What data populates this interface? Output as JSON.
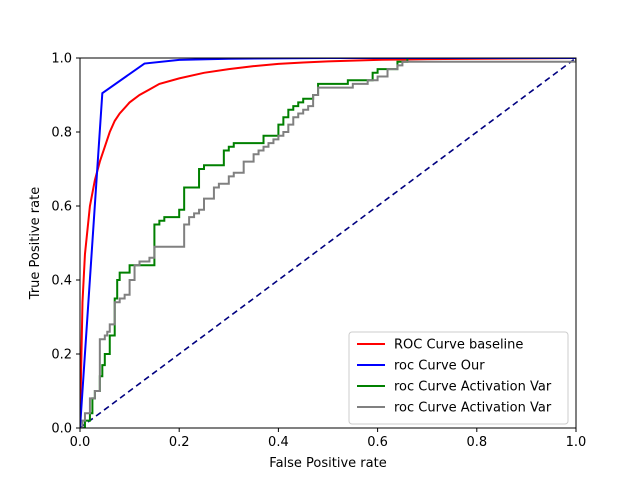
{
  "chart_data": {
    "type": "line",
    "title": "",
    "xlabel": "False Positive rate",
    "ylabel": "True Positive rate",
    "xlim": [
      0.0,
      1.0
    ],
    "ylim": [
      0.0,
      1.0
    ],
    "xticks": [
      "0.0",
      "0.2",
      "0.4",
      "0.6",
      "0.8",
      "1.0"
    ],
    "yticks": [
      "0.0",
      "0.2",
      "0.4",
      "0.6",
      "0.8",
      "1.0"
    ],
    "grid": false,
    "legend_position": "bottom-right",
    "series": [
      {
        "name": "ROC Curve baseline",
        "color": "#ff0000",
        "style": "solid",
        "x": [
          0.0,
          0.005,
          0.01,
          0.02,
          0.03,
          0.04,
          0.05,
          0.06,
          0.07,
          0.08,
          0.1,
          0.12,
          0.14,
          0.16,
          0.2,
          0.25,
          0.3,
          0.35,
          0.4,
          0.45,
          0.5,
          0.55,
          0.6,
          0.65,
          0.7,
          0.8,
          0.9,
          1.0
        ],
        "y": [
          0.0,
          0.34,
          0.47,
          0.6,
          0.67,
          0.72,
          0.76,
          0.8,
          0.83,
          0.85,
          0.88,
          0.9,
          0.915,
          0.93,
          0.945,
          0.96,
          0.97,
          0.978,
          0.984,
          0.988,
          0.991,
          0.993,
          0.995,
          0.996,
          0.997,
          0.998,
          0.999,
          1.0
        ]
      },
      {
        "name": "roc Curve Our",
        "color": "#0000ff",
        "style": "solid",
        "x": [
          0.0,
          0.045,
          0.13,
          0.2,
          0.3,
          0.5,
          1.0
        ],
        "y": [
          0.0,
          0.905,
          0.985,
          0.995,
          0.998,
          1.0,
          1.0
        ],
        "smooth": false
      },
      {
        "name": "roc Curve Activation Var",
        "color": "#008000",
        "style": "solid",
        "x": [
          0.0,
          0.01,
          0.02,
          0.025,
          0.03,
          0.04,
          0.045,
          0.05,
          0.06,
          0.07,
          0.075,
          0.08,
          0.09,
          0.1,
          0.11,
          0.12,
          0.15,
          0.16,
          0.17,
          0.18,
          0.2,
          0.21,
          0.22,
          0.24,
          0.25,
          0.29,
          0.3,
          0.31,
          0.37,
          0.4,
          0.41,
          0.42,
          0.43,
          0.44,
          0.45,
          0.47,
          0.48,
          0.51,
          0.54,
          0.59,
          0.6,
          0.64,
          0.65,
          0.66,
          1.0
        ],
        "y": [
          0.0,
          0.02,
          0.04,
          0.08,
          0.1,
          0.14,
          0.17,
          0.2,
          0.25,
          0.35,
          0.4,
          0.42,
          0.42,
          0.44,
          0.44,
          0.44,
          0.55,
          0.56,
          0.57,
          0.57,
          0.59,
          0.65,
          0.65,
          0.7,
          0.71,
          0.75,
          0.76,
          0.77,
          0.79,
          0.82,
          0.84,
          0.86,
          0.87,
          0.88,
          0.89,
          0.9,
          0.93,
          0.93,
          0.94,
          0.96,
          0.97,
          0.99,
          0.99,
          1.0,
          1.0
        ],
        "step": true
      },
      {
        "name": "roc Curve Activation Var",
        "color": "#808080",
        "style": "solid",
        "x": [
          0.0,
          0.005,
          0.01,
          0.02,
          0.03,
          0.04,
          0.05,
          0.055,
          0.06,
          0.07,
          0.08,
          0.09,
          0.1,
          0.11,
          0.12,
          0.14,
          0.15,
          0.2,
          0.21,
          0.22,
          0.23,
          0.24,
          0.25,
          0.27,
          0.28,
          0.3,
          0.31,
          0.33,
          0.35,
          0.36,
          0.37,
          0.38,
          0.39,
          0.4,
          0.41,
          0.42,
          0.43,
          0.44,
          0.45,
          0.46,
          0.47,
          0.48,
          0.54,
          0.55,
          0.58,
          0.6,
          0.62,
          0.64,
          0.65,
          1.0
        ],
        "y": [
          0.0,
          0.02,
          0.04,
          0.08,
          0.1,
          0.24,
          0.25,
          0.26,
          0.28,
          0.34,
          0.35,
          0.36,
          0.4,
          0.44,
          0.45,
          0.46,
          0.49,
          0.49,
          0.55,
          0.57,
          0.58,
          0.59,
          0.62,
          0.65,
          0.66,
          0.68,
          0.69,
          0.72,
          0.74,
          0.75,
          0.76,
          0.77,
          0.78,
          0.79,
          0.8,
          0.82,
          0.84,
          0.85,
          0.86,
          0.87,
          0.9,
          0.92,
          0.92,
          0.93,
          0.94,
          0.95,
          0.97,
          0.98,
          0.99,
          1.0
        ],
        "step": true
      },
      {
        "name": "",
        "color": "#000080",
        "style": "dashed",
        "x": [
          0.0,
          1.0
        ],
        "y": [
          0.0,
          1.0
        ],
        "in_legend": false
      }
    ]
  }
}
